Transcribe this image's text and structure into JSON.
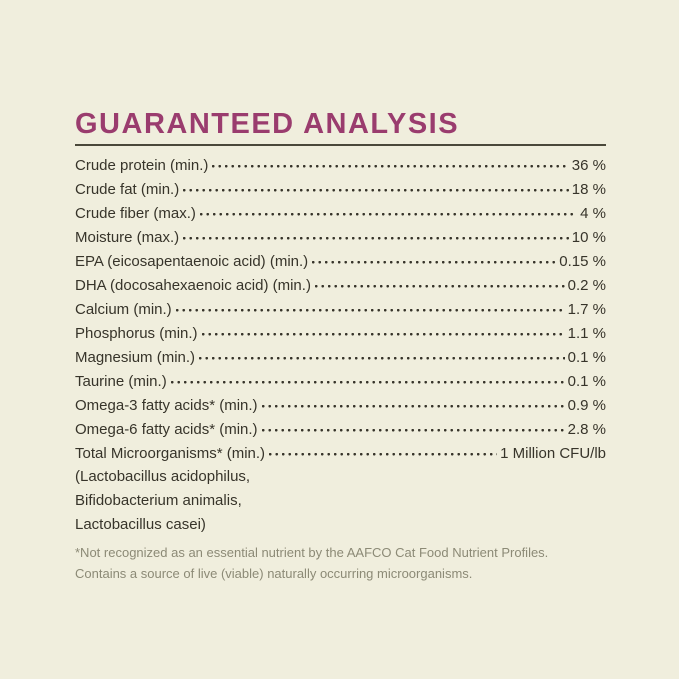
{
  "title": "GUARANTEED ANALYSIS",
  "analysis": {
    "rows": [
      {
        "label": "Crude protein (min.)",
        "value": "36 %"
      },
      {
        "label": "Crude fat (min.)",
        "value": "18 %"
      },
      {
        "label": "Crude fiber (max.)",
        "value": "4 %"
      },
      {
        "label": "Moisture (max.)",
        "value": "10 %"
      },
      {
        "label": "EPA (eicosapentaenoic acid) (min.)",
        "value": "0.15 %"
      },
      {
        "label": "DHA (docosahexaenoic acid) (min.)",
        "value": "0.2 %"
      },
      {
        "label": "Calcium (min.)",
        "value": "1.7 %"
      },
      {
        "label": "Phosphorus (min.)",
        "value": "1.1 %"
      },
      {
        "label": "Magnesium (min.)",
        "value": "0.1 %"
      },
      {
        "label": "Taurine (min.)",
        "value": "0.1 %"
      },
      {
        "label": "Omega-3 fatty acids* (min.)",
        "value": "0.9 %"
      },
      {
        "label": "Omega-6 fatty acids* (min.)",
        "value": "2.8 %"
      },
      {
        "label": "Total Microorganisms* (min.)",
        "value": "1 Million CFU/lb"
      }
    ],
    "microorganism_species": [
      "(Lactobacillus acidophilus,",
      "Bifidobacterium animalis,",
      "Lactobacillus casei)"
    ],
    "footnotes": [
      "*Not recognized as an essential nutrient by the AAFCO Cat Food Nutrient Profiles.",
      "Contains a source of live (viable) naturally occurring microorganisms."
    ]
  },
  "colors": {
    "background": "#f0eedd",
    "title": "#9a3c6e",
    "rule": "#4a483a",
    "text": "#37342a",
    "footnote": "#8c8a76"
  }
}
